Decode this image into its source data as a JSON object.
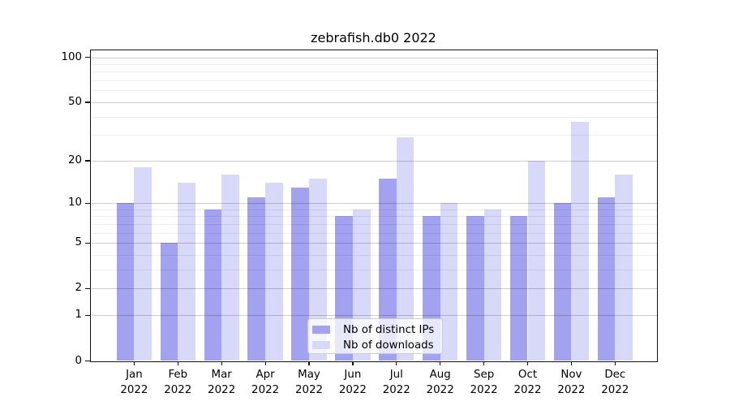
{
  "title": "zebrafish.db0 2022",
  "chart_data": {
    "type": "bar",
    "title": "zebrafish.db0 2022",
    "categories": [
      "Jan",
      "Feb",
      "Mar",
      "Apr",
      "May",
      "Jun",
      "Jul",
      "Aug",
      "Sep",
      "Oct",
      "Nov",
      "Dec"
    ],
    "year_label": "2022",
    "series": [
      {
        "name": "Nb of distinct IPs",
        "color": "#a2a2f0",
        "values": [
          10,
          5,
          9,
          11,
          13,
          8,
          15,
          8,
          8,
          8,
          10,
          11
        ]
      },
      {
        "name": "Nb of downloads",
        "color": "#d8d8f8",
        "values": [
          18,
          14,
          16,
          14,
          15,
          9,
          29,
          10,
          9,
          20,
          37,
          16
        ]
      }
    ],
    "yscale": "log1p",
    "yticks": [
      0,
      1,
      2,
      5,
      10,
      20,
      50,
      100
    ],
    "minor_gridlines": [
      3,
      4,
      6,
      7,
      8,
      9,
      30,
      40,
      60,
      70,
      80,
      90
    ],
    "ylim": [
      0,
      110
    ],
    "grid": true,
    "legend_position": "bottom-center"
  }
}
